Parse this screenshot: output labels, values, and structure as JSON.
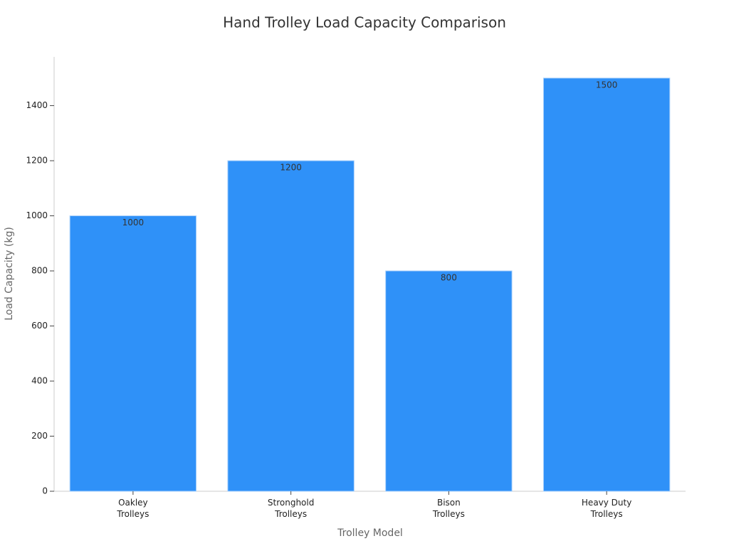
{
  "chart_data": {
    "type": "bar",
    "title": "Hand Trolley Load Capacity Comparison",
    "x_label": "Trolley Model",
    "y_label": "Load Capacity (kg)",
    "categories": [
      "Oakley Trolleys",
      "Stronghold Trolleys",
      "Bison Trolleys",
      "Heavy Duty Trolleys"
    ],
    "values": [
      1000,
      1200,
      800,
      1500
    ],
    "color": "#2f91f8",
    "ylim": [
      0,
      1577
    ],
    "yticks": [
      0,
      200,
      400,
      600,
      800,
      1000,
      1200,
      1400
    ],
    "grid": false
  }
}
